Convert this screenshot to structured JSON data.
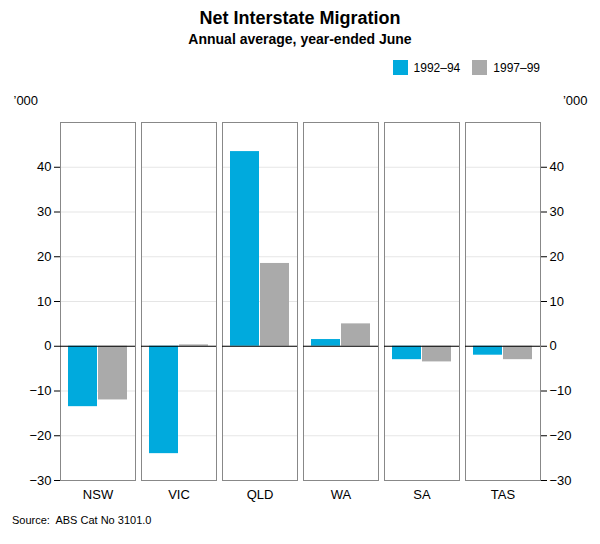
{
  "chart_data": {
    "type": "bar",
    "title": "Net Interstate Migration",
    "subtitle": "Annual average, year-ended June",
    "categories": [
      "NSW",
      "VIC",
      "QLD",
      "WA",
      "SA",
      "TAS"
    ],
    "series": [
      {
        "name": "1992–94",
        "color": "#00AADD",
        "values": [
          -13.5,
          -24.0,
          43.5,
          1.5,
          -3.0,
          -2.0
        ]
      },
      {
        "name": "1997–99",
        "color": "#AAAAAA",
        "values": [
          -12.0,
          0.3,
          18.5,
          5.0,
          -3.5,
          -3.0
        ]
      }
    ],
    "ylabel": "’000",
    "y2label": "’000",
    "ylim": [
      -30,
      50
    ],
    "yticks": [
      -30,
      -20,
      -10,
      0,
      10,
      20,
      30,
      40
    ],
    "y2lim": [
      -30,
      50
    ],
    "y2ticks": [
      -30,
      -20,
      -10,
      0,
      10,
      20,
      30,
      40
    ],
    "grid": true,
    "legend": "upper right",
    "source": "Source:  ABS Cat No 3101.0"
  }
}
